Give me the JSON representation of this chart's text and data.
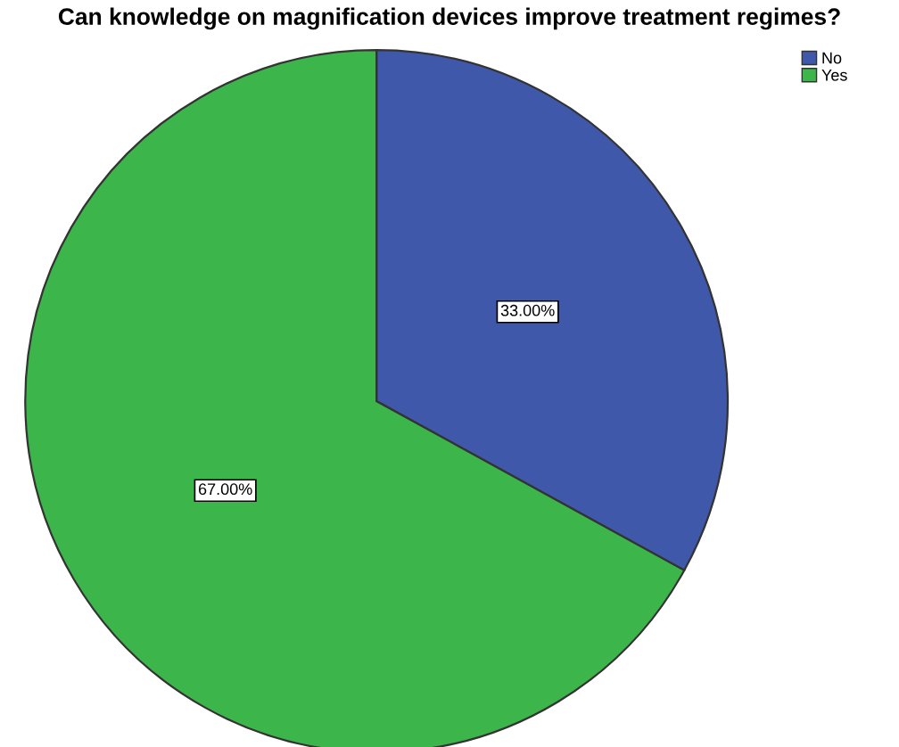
{
  "chart_data": {
    "type": "pie",
    "title": "Can knowledge on magnification devices improve treatment regimes?",
    "categories": [
      "No",
      "Yes"
    ],
    "values": [
      33,
      67
    ],
    "colors": [
      "#3f58aa",
      "#3cb54a"
    ],
    "value_labels": [
      "33.00%",
      "67.00%"
    ],
    "legend": "top right"
  }
}
